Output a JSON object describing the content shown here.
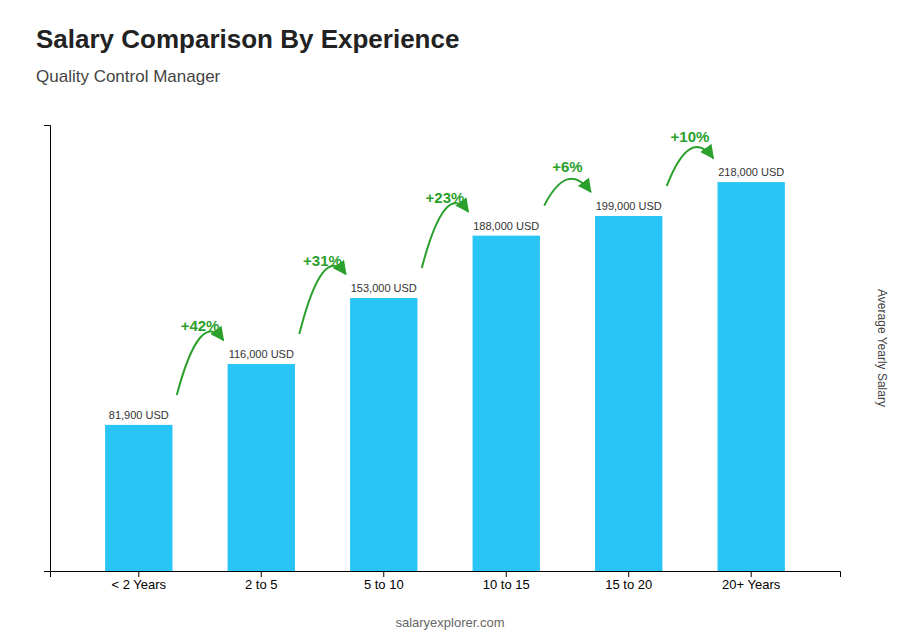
{
  "chart_data": {
    "type": "bar",
    "title": "Salary Comparison By Experience",
    "subtitle": "Quality Control Manager",
    "ylabel": "Average Yearly Salary",
    "categories": [
      "< 2 Years",
      "2 to 5",
      "5 to 10",
      "10 to 15",
      "15 to 20",
      "20+ Years"
    ],
    "values": [
      81900,
      116000,
      153000,
      188000,
      199000,
      218000
    ],
    "value_labels": [
      "81,900 USD",
      "116,000 USD",
      "153,000 USD",
      "188,000 USD",
      "199,000 USD",
      "218,000 USD"
    ],
    "data_labels": true,
    "color": "#29c5f6",
    "ylim": [
      0,
      250000
    ],
    "grid": false,
    "tick_labels": "x",
    "annotations": [
      "+42%",
      "+31%",
      "+23%",
      "+6%",
      "+10%"
    ],
    "watermark": "salaryexplorer.com"
  }
}
